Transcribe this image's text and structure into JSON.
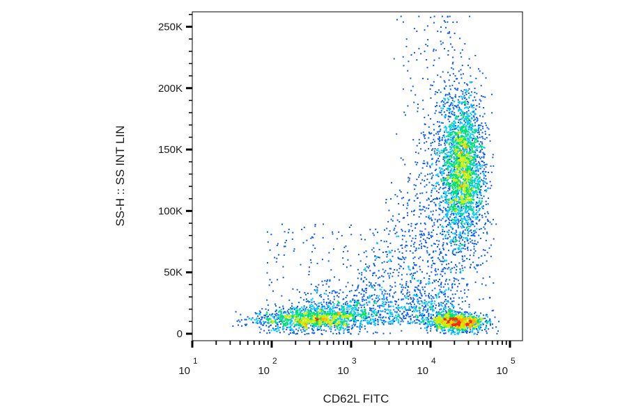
{
  "chart_data": {
    "type": "scatter",
    "style": "flow cytometry density dot plot",
    "xlabel": "CD62L FITC",
    "ylabel": "SS-H :: SS INT LIN",
    "x_scale": "log",
    "xlim": [
      10,
      100000
    ],
    "ylim": [
      0,
      262144
    ],
    "x_ticks": [
      {
        "base": "10",
        "exp": "1",
        "value": 10
      },
      {
        "base": "10",
        "exp": "2",
        "value": 100
      },
      {
        "base": "10",
        "exp": "3",
        "value": 1000
      },
      {
        "base": "10",
        "exp": "4",
        "value": 10000
      },
      {
        "base": "10",
        "exp": "5",
        "value": 100000
      }
    ],
    "y_ticks": [
      {
        "label": "0",
        "value": 0
      },
      {
        "label": "50K",
        "value": 50000
      },
      {
        "label": "100K",
        "value": 100000
      },
      {
        "label": "150K",
        "value": 150000
      },
      {
        "label": "200K",
        "value": 200000
      },
      {
        "label": "250K",
        "value": 250000
      }
    ],
    "populations": [
      {
        "name": "low-CD62L low-SS cluster",
        "x_center": 300,
        "y_center": 12000,
        "x_spread_decades": 0.35,
        "y_spread": 5000,
        "n": 1100,
        "peak_density": "high"
      },
      {
        "name": "high-CD62L low-SS cluster",
        "x_center": 22000,
        "y_center": 10000,
        "x_spread_decades": 0.18,
        "y_spread": 4000,
        "n": 1000,
        "peak_density": "high"
      },
      {
        "name": "high-CD62L high-SS cluster",
        "x_center": 25000,
        "y_center": 135000,
        "x_spread_decades": 0.14,
        "y_spread": 30000,
        "n": 2600,
        "peak_density": "high"
      },
      {
        "name": "diffuse low-density events",
        "x_range": [
          80,
          100000
        ],
        "y_range": [
          0,
          262144
        ],
        "n": 2200,
        "peak_density": "low"
      }
    ],
    "colormap": [
      "#0000cc",
      "#0055ff",
      "#00c8ff",
      "#00e070",
      "#c8f000",
      "#ffb000",
      "#ff2a00"
    ],
    "grid": false,
    "legend": false
  }
}
